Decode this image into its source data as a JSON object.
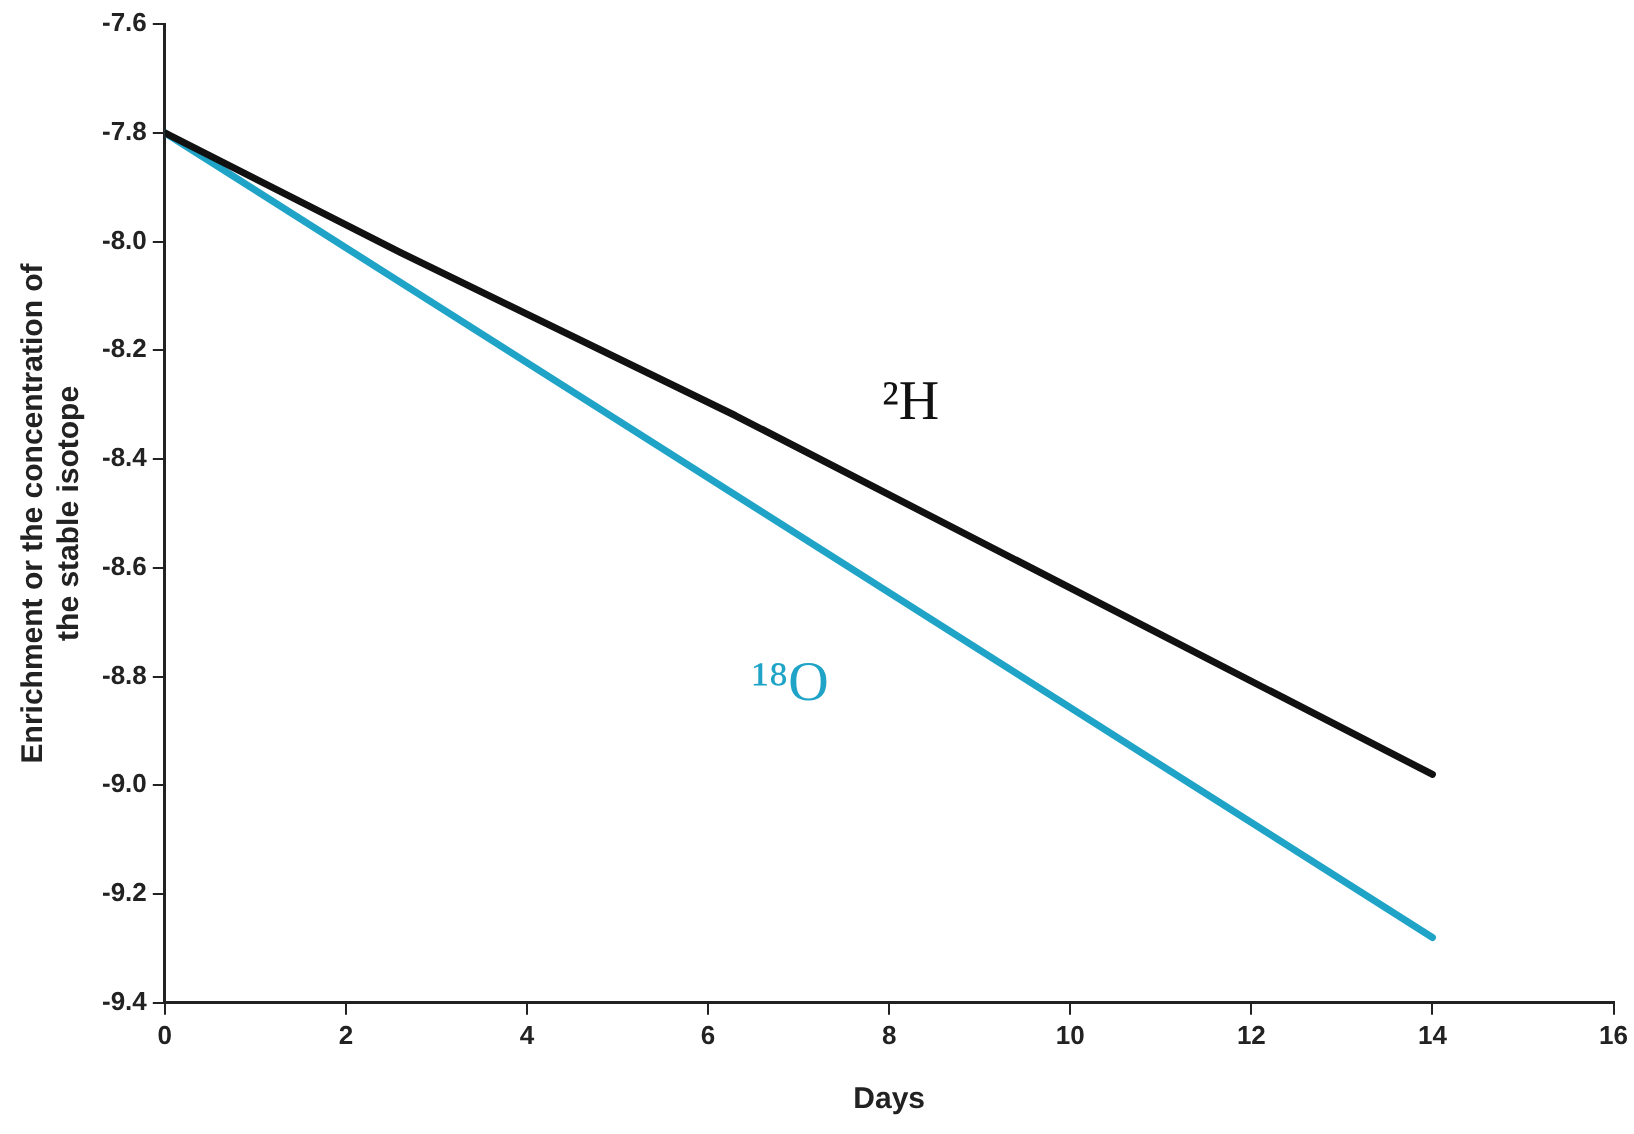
{
  "chart_data": {
    "type": "line",
    "xlabel": "Days",
    "ylabel": "Enrichment or the concentration of the stable isotope",
    "xlim": [
      0,
      16
    ],
    "xticks": [
      0,
      2,
      4,
      6,
      8,
      10,
      12,
      14,
      16
    ],
    "ylim": [
      -9.4,
      -7.6
    ],
    "yticks": [
      -9.4,
      -9.2,
      {
        "value": -9,
        "label": "-9.0"
      },
      -8.8,
      -8.6,
      -8.4,
      -8.2,
      {
        "value": -8,
        "label": "-8.0"
      },
      -7.8,
      -7.6
    ],
    "grid": false,
    "legend": false,
    "marker": "none",
    "line_style": "solid",
    "series": [
      {
        "name": "²H",
        "color": "#111111",
        "x": [
          0,
          2.6,
          6.3,
          14
        ],
        "values": [
          -7.8,
          -8.02,
          -8.32,
          -8.98
        ]
      },
      {
        "name": "¹⁸O",
        "color": "#1fa3c6",
        "x": [
          0,
          14
        ],
        "values": [
          -7.8,
          -9.28
        ]
      }
    ]
  }
}
